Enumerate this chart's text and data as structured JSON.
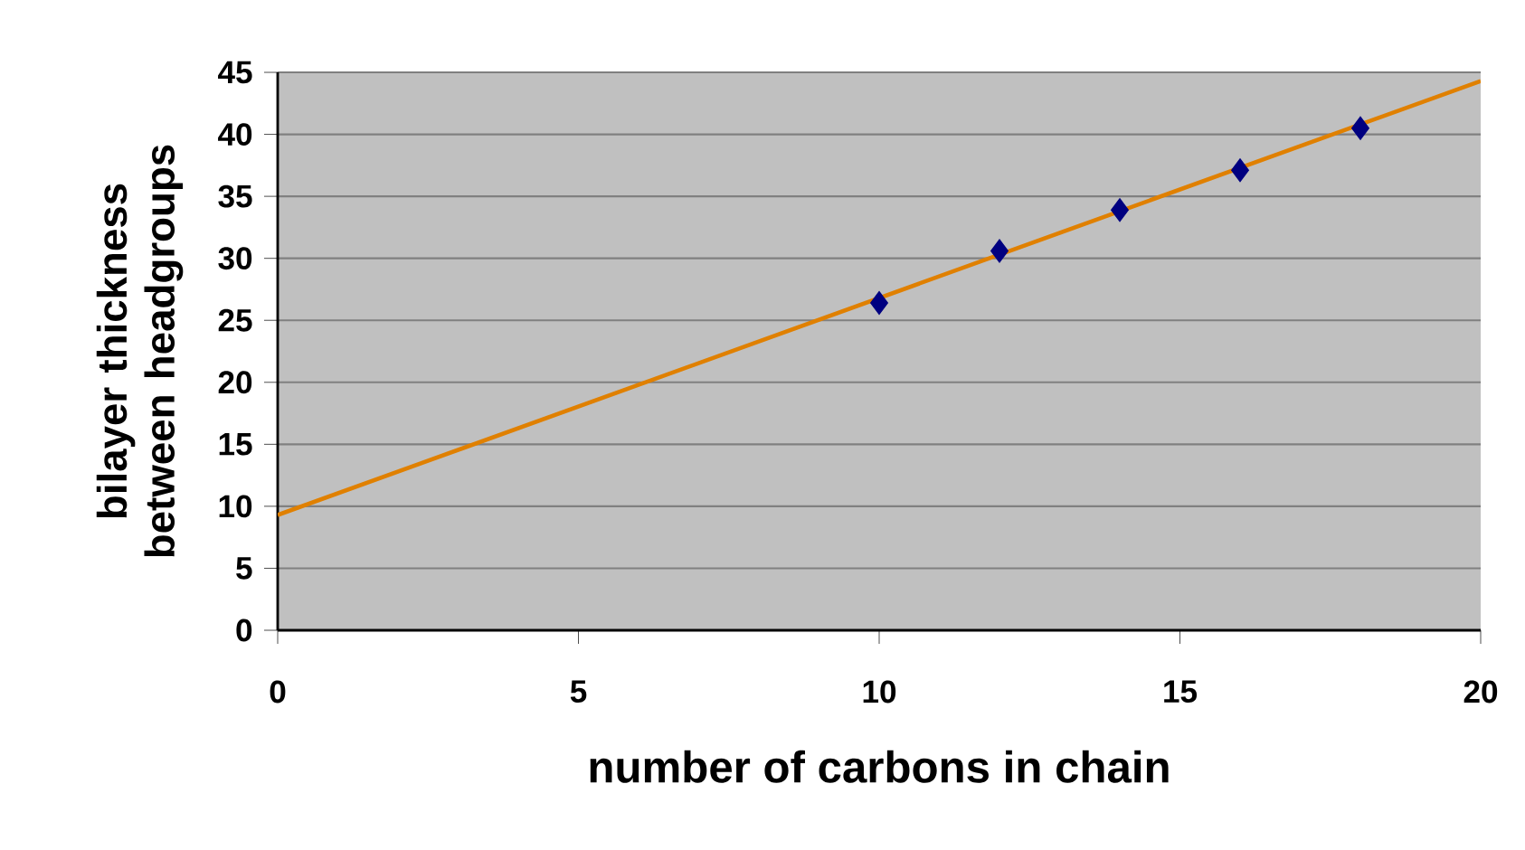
{
  "chart_data": {
    "type": "scatter",
    "xlabel": "number of carbons in chain",
    "ylabel": "bilayer thickness between headgroups",
    "xlim": [
      0,
      20
    ],
    "xticks": [
      0,
      5,
      10,
      15,
      20
    ],
    "ylim": [
      0,
      45
    ],
    "yticks": [
      0,
      5,
      10,
      15,
      20,
      25,
      30,
      35,
      40,
      45
    ],
    "grid": "y",
    "series": [
      {
        "marker": "diamond",
        "color": "#000080",
        "x": [
          10,
          12,
          14,
          16,
          18
        ],
        "values": [
          26.4,
          30.6,
          33.9,
          37.1,
          40.5
        ]
      },
      {
        "type": "line",
        "marker": "none",
        "color": "#e08000",
        "x": [
          0,
          20
        ],
        "values": [
          9.3,
          44.3
        ]
      }
    ]
  }
}
